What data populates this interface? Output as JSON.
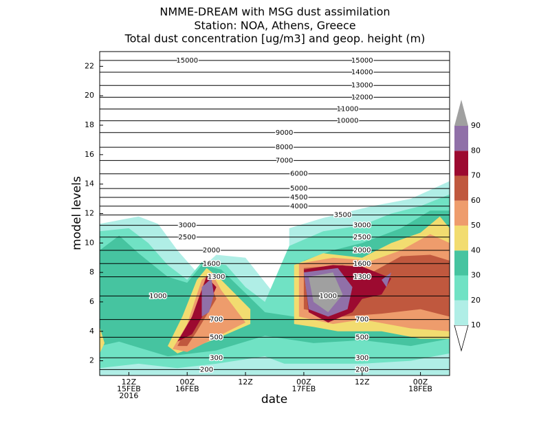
{
  "chart_data": {
    "type": "contour",
    "title": [
      "NMME-DREAM with MSG dust assimilation",
      "Station: NOA, Athens, Greece",
      "Total dust concentration [ug/m3] and geop. height (m)"
    ],
    "x_label": "date",
    "y_label": "model levels",
    "xlim": [
      6,
      78
    ],
    "ylim": [
      1,
      23
    ],
    "xticks": [
      {
        "value": 12,
        "label": [
          "12Z",
          "15FEB",
          "2016"
        ]
      },
      {
        "value": 24,
        "label": [
          "00Z",
          "16FEB"
        ]
      },
      {
        "value": 36,
        "label": [
          "12Z"
        ]
      },
      {
        "value": 48,
        "label": [
          "00Z",
          "17FEB"
        ]
      },
      {
        "value": 60,
        "label": [
          "12Z"
        ]
      },
      {
        "value": 72,
        "label": [
          "00Z",
          "18FEB"
        ]
      }
    ],
    "yticks": [
      2,
      4,
      6,
      8,
      10,
      12,
      14,
      16,
      18,
      20,
      22
    ],
    "levels": [
      10,
      20,
      30,
      40,
      50,
      60,
      70,
      80,
      90
    ],
    "colors": [
      "#b0eee6",
      "#70e2c4",
      "#46c4a0",
      "#f2dc70",
      "#ee9c6c",
      "#c0583e",
      "#9c0a30",
      "#9070a8",
      "#a0a0a0"
    ],
    "regions": [
      {
        "level": 10,
        "outline": [
          [
            6,
            1
          ],
          [
            6,
            11.3
          ],
          [
            14,
            11.8
          ],
          [
            18,
            11.3
          ],
          [
            22,
            9.5
          ],
          [
            26,
            8
          ],
          [
            30,
            9.2
          ],
          [
            36,
            9
          ],
          [
            42,
            6.5
          ],
          [
            45,
            7.5
          ],
          [
            45,
            11
          ],
          [
            52,
            11.7
          ],
          [
            62,
            12.5
          ],
          [
            70,
            13
          ],
          [
            78,
            14.2
          ],
          [
            78,
            1
          ]
        ]
      },
      {
        "level": 20,
        "outline": [
          [
            6,
            1.5
          ],
          [
            6,
            10.8
          ],
          [
            12,
            11
          ],
          [
            16,
            10
          ],
          [
            20,
            8.5
          ],
          [
            24,
            7.5
          ],
          [
            27,
            8.7
          ],
          [
            32,
            8.5
          ],
          [
            36,
            7
          ],
          [
            40,
            6
          ],
          [
            45,
            9.8
          ],
          [
            52,
            10.8
          ],
          [
            60,
            11.2
          ],
          [
            66,
            12
          ],
          [
            72,
            12.5
          ],
          [
            78,
            13.3
          ],
          [
            78,
            2.5
          ],
          [
            70,
            2
          ],
          [
            60,
            1.8
          ],
          [
            50,
            1.8
          ],
          [
            44,
            1.8
          ],
          [
            40,
            2.3
          ],
          [
            30,
            1.8
          ],
          [
            22,
            1.5
          ],
          [
            14,
            1.8
          ]
        ]
      },
      {
        "level": 30,
        "outline": [
          [
            6,
            3
          ],
          [
            6,
            9.5
          ],
          [
            10,
            10.5
          ],
          [
            14,
            9.3
          ],
          [
            20,
            7.7
          ],
          [
            24,
            7.3
          ],
          [
            27,
            8.5
          ],
          [
            31,
            8.2
          ],
          [
            40,
            5.3
          ],
          [
            46,
            5
          ],
          [
            48,
            8.8
          ],
          [
            54,
            9.5
          ],
          [
            60,
            10
          ],
          [
            68,
            11
          ],
          [
            74,
            12.2
          ],
          [
            78,
            12.2
          ],
          [
            78,
            3.5
          ],
          [
            70,
            3
          ],
          [
            60,
            3.4
          ],
          [
            50,
            3.2
          ],
          [
            40,
            3.7
          ],
          [
            30,
            2.7
          ],
          [
            20,
            2.3
          ],
          [
            14,
            2.9
          ],
          [
            10,
            3.3
          ]
        ]
      },
      {
        "level": 40,
        "outline": [
          [
            6,
            2.5
          ],
          [
            7,
            3.2
          ],
          [
            6,
            4.3
          ]
        ]
      },
      {
        "level": 40,
        "outline": [
          [
            20,
            3
          ],
          [
            23,
            5
          ],
          [
            26,
            7.5
          ],
          [
            28,
            8.3
          ],
          [
            31,
            7.5
          ],
          [
            37,
            5.5
          ],
          [
            37,
            4.5
          ],
          [
            30,
            3.5
          ],
          [
            22,
            2.5
          ]
        ]
      },
      {
        "level": 40,
        "outline": [
          [
            46,
            4.5
          ],
          [
            46,
            8.5
          ],
          [
            52,
            9.3
          ],
          [
            60,
            9
          ],
          [
            66,
            10
          ],
          [
            72,
            10.7
          ],
          [
            76,
            11.8
          ],
          [
            78,
            11
          ],
          [
            78,
            3.5
          ],
          [
            72,
            3.5
          ],
          [
            64,
            4
          ],
          [
            55,
            4
          ],
          [
            50,
            4.3
          ]
        ]
      },
      {
        "level": 50,
        "outline": [
          [
            21,
            2.8
          ],
          [
            24,
            4.5
          ],
          [
            27,
            7.5
          ],
          [
            29,
            8
          ],
          [
            31,
            6.8
          ],
          [
            36,
            4.6
          ],
          [
            30,
            3.6
          ],
          [
            24,
            2.6
          ]
        ]
      },
      {
        "level": 50,
        "outline": [
          [
            47,
            5
          ],
          [
            47,
            8.6
          ],
          [
            54,
            9
          ],
          [
            62,
            8.8
          ],
          [
            68,
            9.5
          ],
          [
            74,
            10.6
          ],
          [
            78,
            10
          ],
          [
            78,
            4
          ],
          [
            70,
            4.2
          ],
          [
            60,
            4.8
          ],
          [
            54,
            4.5
          ]
        ]
      },
      {
        "level": 60,
        "outline": [
          [
            22,
            3
          ],
          [
            25,
            5
          ],
          [
            28,
            7.8
          ],
          [
            30,
            6.2
          ],
          [
            26,
            4
          ],
          [
            24,
            3
          ]
        ]
      },
      {
        "level": 60,
        "outline": [
          [
            48,
            5.5
          ],
          [
            48,
            8.3
          ],
          [
            56,
            8.5
          ],
          [
            62,
            8
          ],
          [
            68,
            9.1
          ],
          [
            74,
            9.2
          ],
          [
            78,
            8.8
          ],
          [
            78,
            5
          ],
          [
            72,
            5.5
          ],
          [
            64,
            5.2
          ],
          [
            56,
            5
          ]
        ]
      },
      {
        "level": 70,
        "outline": [
          [
            22,
            3.3
          ],
          [
            25,
            5
          ],
          [
            28,
            7.7
          ],
          [
            30,
            7
          ],
          [
            28,
            5.5
          ],
          [
            25,
            3.8
          ]
        ]
      },
      {
        "level": 70,
        "outline": [
          [
            49,
            5.3
          ],
          [
            48,
            8.2
          ],
          [
            54,
            8.5
          ],
          [
            60,
            8.4
          ],
          [
            66,
            7.6
          ],
          [
            64,
            6.5
          ],
          [
            60,
            6.2
          ],
          [
            58,
            5.3
          ],
          [
            53,
            4.6
          ]
        ]
      },
      {
        "level": 80,
        "outline": [
          [
            27,
            5
          ],
          [
            27,
            7
          ],
          [
            29,
            7.6
          ],
          [
            29.5,
            6.5
          ],
          [
            28.5,
            5.3
          ]
        ]
      },
      {
        "level": 80,
        "outline": [
          [
            49,
            5.5
          ],
          [
            48,
            8
          ],
          [
            55,
            8.3
          ],
          [
            58,
            7
          ],
          [
            57,
            5.5
          ],
          [
            53,
            5
          ]
        ]
      },
      {
        "level": 80,
        "outline": [
          [
            64,
            7.5
          ],
          [
            66,
            8
          ],
          [
            65,
            7
          ]
        ]
      },
      {
        "level": 90,
        "outline": [
          [
            50,
            6
          ],
          [
            49,
            7.7
          ],
          [
            54,
            8
          ],
          [
            56,
            6.5
          ],
          [
            53,
            5.3
          ]
        ]
      }
    ],
    "height_lines": [
      {
        "label": 15000,
        "level": 22.4,
        "x": [
          24,
          60
        ]
      },
      {
        "label": 14000,
        "level": 21.6,
        "x": [
          60
        ]
      },
      {
        "label": 13000,
        "level": 20.7,
        "x": [
          60
        ]
      },
      {
        "label": 12000,
        "level": 19.9,
        "x": [
          60
        ]
      },
      {
        "label": 11000,
        "level": 19.1,
        "x": [
          57
        ]
      },
      {
        "label": 10000,
        "level": 18.3,
        "x": [
          57
        ]
      },
      {
        "label": 9000,
        "level": 17.5,
        "x": [
          44
        ]
      },
      {
        "label": 8000,
        "level": 16.5,
        "x": [
          44
        ]
      },
      {
        "label": 7000,
        "level": 15.6,
        "x": [
          44
        ]
      },
      {
        "label": 6000,
        "level": 14.7,
        "x": [
          47
        ]
      },
      {
        "label": 5000,
        "level": 13.7,
        "x": [
          47
        ]
      },
      {
        "label": 4500,
        "level": 13.1,
        "x": [
          47
        ]
      },
      {
        "label": 4000,
        "level": 12.5,
        "x": [
          47
        ]
      },
      {
        "label": 3500,
        "level": 11.9,
        "x": [
          56
        ]
      },
      {
        "label": 3000,
        "level": 11.2,
        "x": [
          24,
          60
        ]
      },
      {
        "label": 2500,
        "level": 10.4,
        "x": [
          24,
          60
        ]
      },
      {
        "label": 2000,
        "level": 9.5,
        "x": [
          29,
          60
        ]
      },
      {
        "label": 1600,
        "level": 8.6,
        "x": [
          29,
          60
        ]
      },
      {
        "label": 1300,
        "level": 7.7,
        "x": [
          30,
          60
        ]
      },
      {
        "label": 1000,
        "level": 6.4,
        "x": [
          18,
          53
        ]
      },
      {
        "label": 700,
        "level": 4.8,
        "x": [
          30,
          60
        ]
      },
      {
        "label": 500,
        "level": 3.6,
        "x": [
          30,
          60
        ]
      },
      {
        "label": 300,
        "level": 2.2,
        "x": [
          30,
          60
        ]
      },
      {
        "label": 200,
        "level": 1.4,
        "x": [
          28,
          60
        ]
      }
    ]
  }
}
